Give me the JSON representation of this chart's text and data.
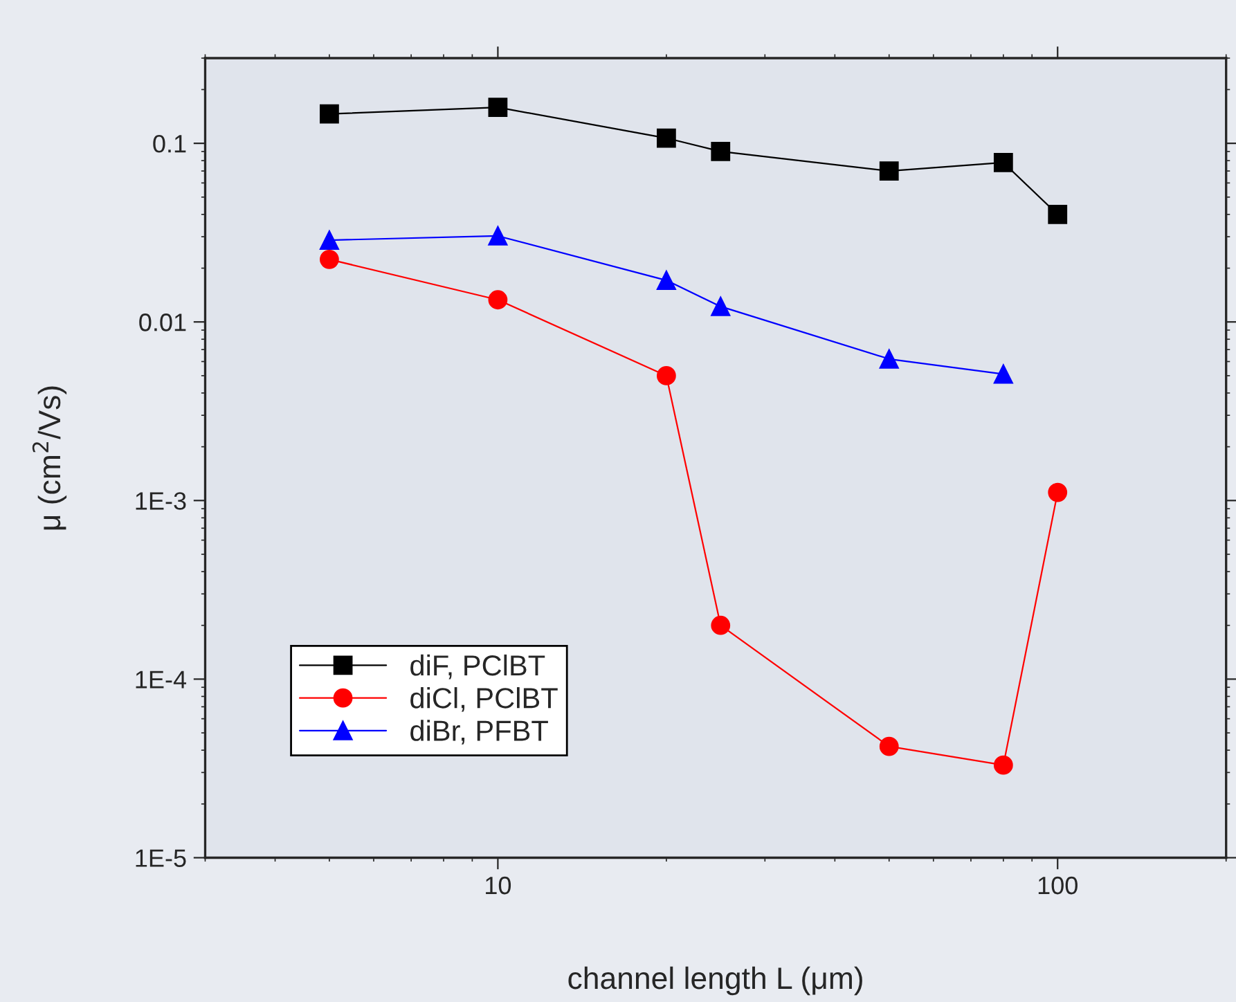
{
  "chart_data": {
    "type": "line",
    "xlabel": "channel length L (μm)",
    "ylabel": "μ (cm$^{2}$/Vs)",
    "log": "xy",
    "xlim": [
      3,
      200
    ],
    "xticks": [
      10,
      100
    ],
    "ylim": [
      1e-05,
      0.3
    ],
    "yticks": [
      {
        "value": 1e-05,
        "label": "1E-5"
      },
      {
        "value": 0.0001,
        "label": "1E-4"
      },
      {
        "value": 0.001,
        "label": "1E-3"
      },
      {
        "value": 0.01,
        "label": "0.01"
      },
      {
        "value": 0.1,
        "label": "0.1"
      }
    ],
    "x": [
      5,
      10,
      20,
      25,
      50,
      80,
      100
    ],
    "series": [
      {
        "name": "diF, PClBT",
        "color": "#000000",
        "marker": "square",
        "values": [
          0.146,
          0.159,
          0.107,
          0.09,
          0.07,
          0.078,
          0.04
        ]
      },
      {
        "name": "diCl, PClBT",
        "color": "#ff0000",
        "marker": "circle",
        "values": [
          0.0224,
          0.0133,
          0.005,
          0.0002,
          4.2e-05,
          3.3e-05,
          0.00111
        ]
      },
      {
        "name": "diBr, PFBT",
        "color": "#0000ff",
        "marker": "triangle",
        "x": [
          5,
          10,
          20,
          25,
          50,
          80
        ],
        "values": [
          0.0287,
          0.0303,
          0.0171,
          0.0122,
          0.0062,
          0.0051
        ]
      }
    ],
    "legend": "bottom left",
    "grid": false
  }
}
